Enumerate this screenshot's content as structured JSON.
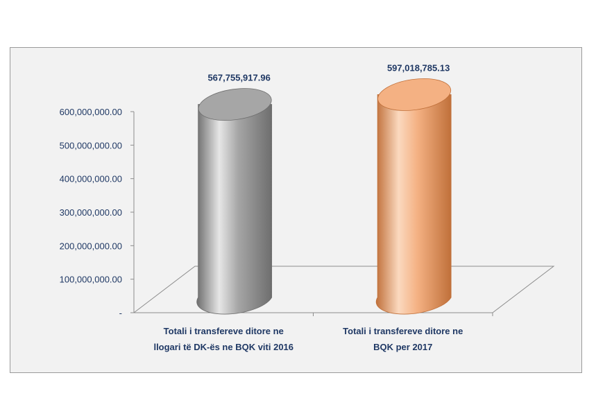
{
  "chart_data": {
    "type": "bar",
    "title": "",
    "xlabel": "",
    "ylabel": "",
    "categories": [
      [
        "Totali i transfereve ditore ne",
        "llogari të DK-ës ne BQK viti 2016"
      ],
      [
        "Totali i transfereve ditore ne",
        "BQK per 2017"
      ]
    ],
    "values": [
      567755917.96,
      597018785.13
    ],
    "data_labels": [
      "567,755,917.96",
      "597,018,785.13"
    ],
    "yticks": [
      0,
      100000000,
      200000000,
      300000000,
      400000000,
      500000000,
      600000000
    ],
    "ytick_labels": [
      "-",
      "100,000,000.00",
      "200,000,000.00",
      "300,000,000.00",
      "400,000,000.00",
      "500,000,000.00",
      "600,000,000.00"
    ],
    "ylim": [
      0,
      600000000
    ],
    "grid": false,
    "legend": "none",
    "colors": [
      "#a6a6a6",
      "#f4b183"
    ],
    "edge_colors": [
      "#6e6e6e",
      "#c0703a"
    ],
    "highlight_colors": [
      "#e6e6e6",
      "#fbd9bf"
    ]
  }
}
